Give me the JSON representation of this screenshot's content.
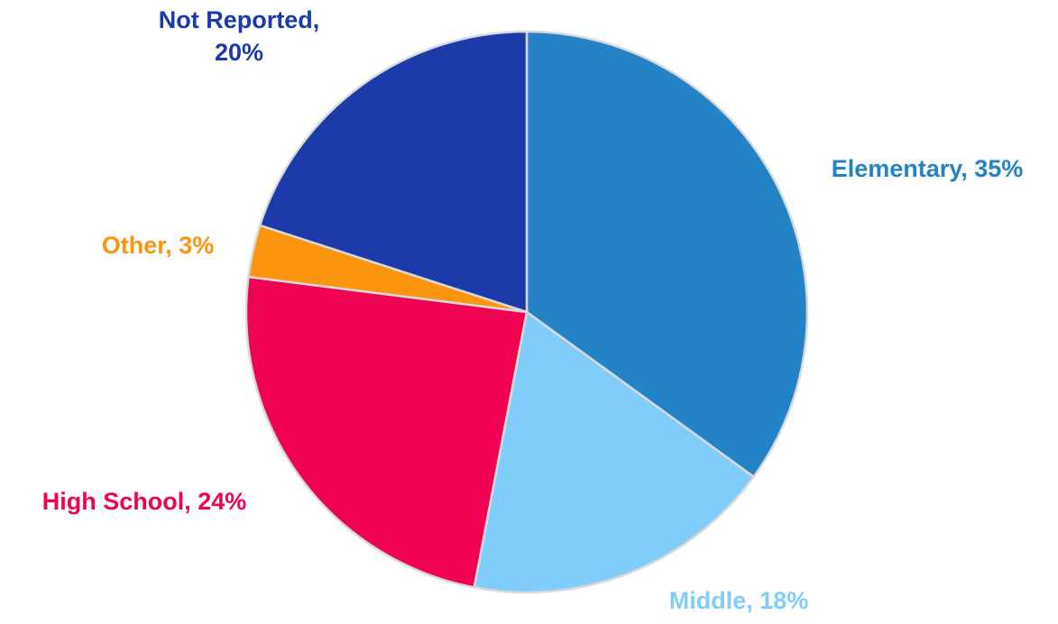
{
  "chart_data": {
    "type": "pie",
    "start_angle_deg": 0,
    "direction": "clockwise",
    "slices": [
      {
        "category": "Elementary",
        "value": 35,
        "label": "Elementary, 35%",
        "label_lines": [
          "Elementary, 35%"
        ],
        "color": "#2383C6"
      },
      {
        "category": "Middle",
        "value": 18,
        "label": "Middle, 18%",
        "label_lines": [
          "Middle, 18%"
        ],
        "color": "#80CDFB"
      },
      {
        "category": "High School",
        "value": 24,
        "label": "High School, 24%",
        "label_lines": [
          "High School, 24%"
        ],
        "color": "#EF0252"
      },
      {
        "category": "Other",
        "value": 3,
        "label": "Other, 3%",
        "label_lines": [
          "Other, 3%"
        ],
        "color": "#FB9510"
      },
      {
        "category": "Not Reported",
        "value": 20,
        "label": "Not Reported, 20%",
        "label_lines": [
          "Not Reported,",
          "20%"
        ],
        "color": "#1C3AA9"
      }
    ],
    "legend": "none",
    "slice_border_color": "#D9D9D9",
    "label_colors": {
      "Elementary": "#2383C6",
      "Middle": "#80CDFB",
      "High School": "#EF0252",
      "Other": "#FB9510",
      "Not Reported": "#1C3AA9"
    }
  }
}
